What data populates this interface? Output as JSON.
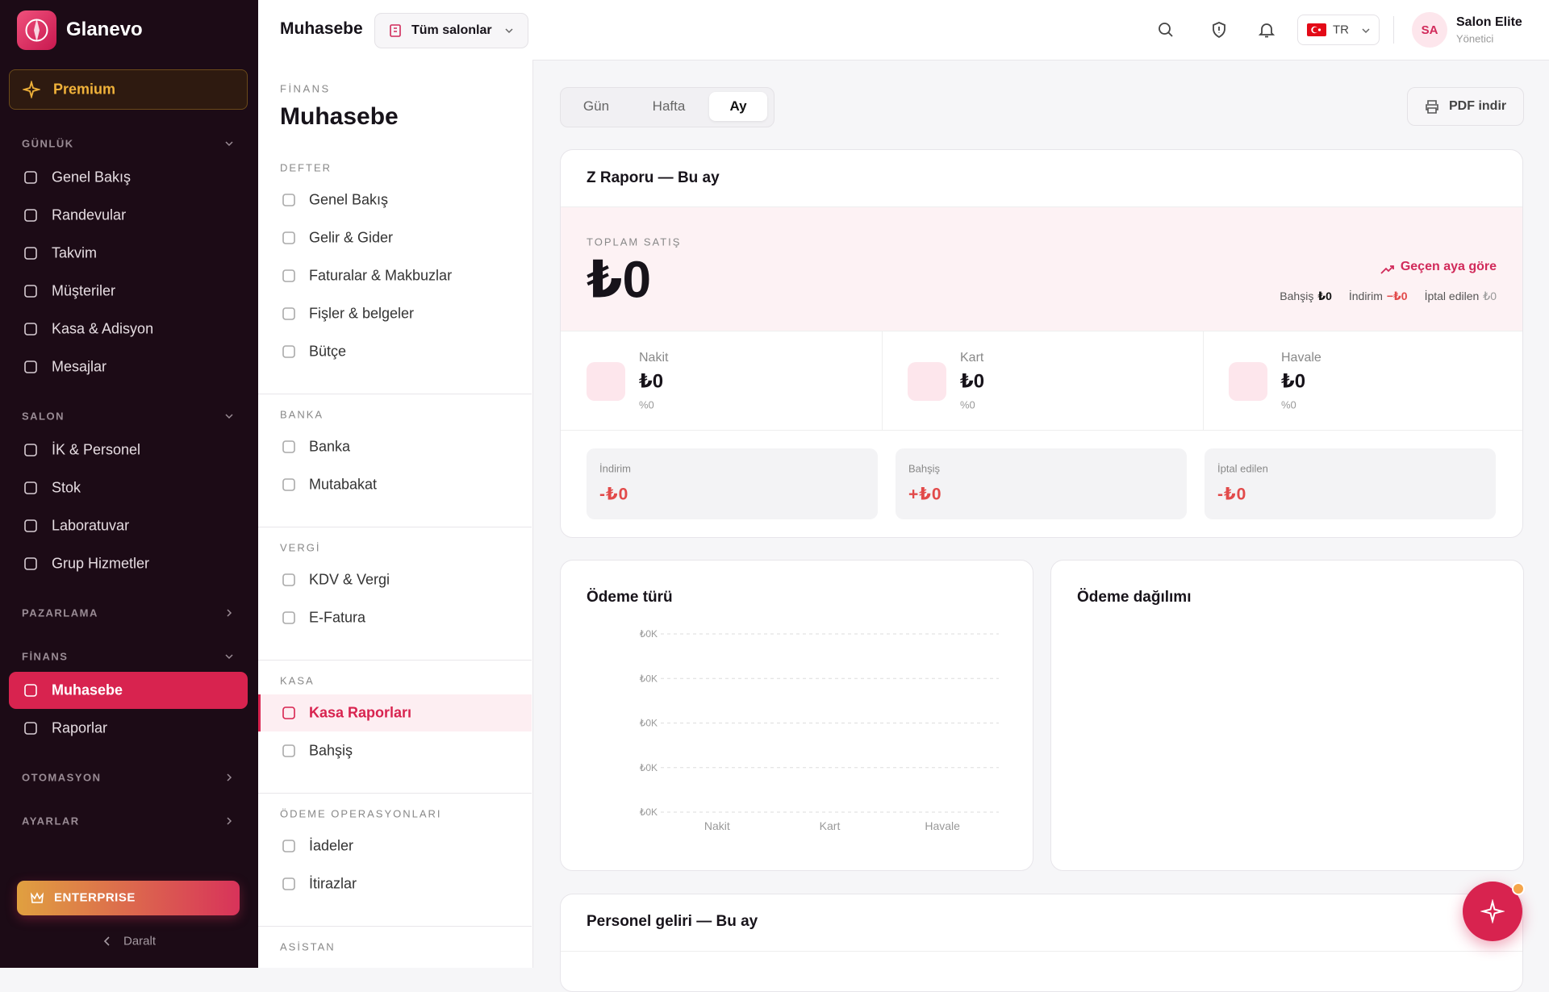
{
  "sidebar": {
    "brand": "Glanevo",
    "premium": "Premium",
    "sections": [
      {
        "title": "GÜNLÜK",
        "items": [
          "Genel Bakış",
          "Randevular",
          "Takvim",
          "Müşteriler",
          "Kasa & Adisyon",
          "Mesajlar"
        ]
      },
      {
        "title": "SALON",
        "items": [
          "İK & Personel",
          "Stok",
          "Laboratuvar",
          "Grup Hizmetler"
        ]
      },
      {
        "title": "PAZARLAMA",
        "items": []
      },
      {
        "title": "FİNANS",
        "items": [
          "Muhasebe",
          "Raporlar"
        ]
      },
      {
        "title": "OTOMASYON",
        "items": []
      },
      {
        "title": "AYARLAR",
        "items": []
      }
    ],
    "enterprise": "ENTERPRISE",
    "collapse": "Daralt"
  },
  "topbar": {
    "page": "Muhasebe",
    "salon_select": "Tüm salonlar",
    "language": "TR",
    "user": {
      "initials": "SA",
      "name": "Salon Elite",
      "role": "Yönetici"
    }
  },
  "subnav": {
    "eyebrow": "FİNANS",
    "title": "Muhasebe",
    "groups": [
      {
        "title": "DEFTER",
        "items": [
          "Genel Bakış",
          "Gelir & Gider",
          "Faturalar & Makbuzlar",
          "Fişler & belgeler",
          "Bütçe"
        ]
      },
      {
        "title": "BANKA",
        "items": [
          "Banka",
          "Mutabakat"
        ]
      },
      {
        "title": "VERGİ",
        "items": [
          "KDV & Vergi",
          "E-Fatura"
        ]
      },
      {
        "title": "KASA",
        "items": [
          "Kasa Raporları",
          "Bahşiş"
        ]
      },
      {
        "title": "ÖDEME OPERASYONLARI",
        "items": [
          "İadeler",
          "İtirazlar"
        ]
      },
      {
        "title": "ASİSTAN",
        "items": []
      }
    ]
  },
  "tabs": [
    "Gün",
    "Hafta",
    "Ay"
  ],
  "pdf": "PDF indir",
  "z_report": {
    "title": "Z Raporu — Bu ay",
    "total_label": "TOPLAM SATIŞ",
    "total": "₺0",
    "compare": "Geçen aya göre",
    "tip_label": "Bahşiş",
    "tip": "₺0",
    "discount_label": "İndirim",
    "discount": "−₺0",
    "cancel_label": "İptal edilen",
    "cancel": "₺0",
    "methods": [
      {
        "name": "Nakit",
        "amount": "₺0",
        "share": "%0"
      },
      {
        "name": "Kart",
        "amount": "₺0",
        "share": "%0"
      },
      {
        "name": "Havale",
        "amount": "₺0",
        "share": "%0"
      }
    ],
    "adjustments": [
      {
        "label": "İndirim",
        "amount": "-₺0"
      },
      {
        "label": "Bahşiş",
        "amount": "+₺0"
      },
      {
        "label": "İptal edilen",
        "amount": "-₺0"
      }
    ]
  },
  "payment_type": {
    "title": "Ödeme türü",
    "y_tick_labels": [
      "₺0K",
      "₺0K",
      "₺0K",
      "₺0K",
      "₺0K"
    ],
    "categories": [
      "Nakit",
      "Kart",
      "Havale"
    ]
  },
  "payment_distribution": {
    "title": "Ödeme dağılımı"
  },
  "staff_income": {
    "title": "Personel geliri — Bu ay"
  }
}
